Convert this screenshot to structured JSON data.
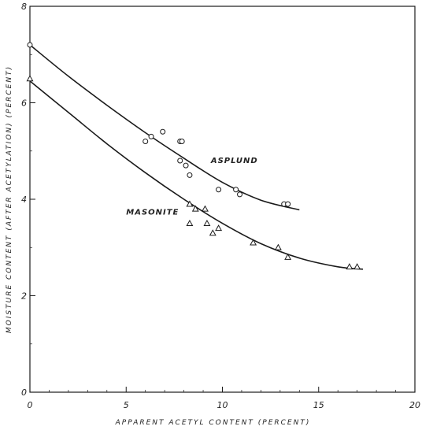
{
  "chart_data": {
    "type": "scatter",
    "xlabel": "APPARENT ACETYL CONTENT (PERCENT)",
    "ylabel": "MOISTURE CONTENT (AFTER ACETYLATION) (PERCENT)",
    "xlim": [
      0,
      20
    ],
    "ylim": [
      0,
      8
    ],
    "x_ticks": [
      "0",
      "5",
      "10",
      "15",
      "20"
    ],
    "y_ticks": [
      "0",
      "2",
      "4",
      "6",
      "8"
    ],
    "grid": false,
    "series": [
      {
        "name": "ASPLUND",
        "marker": "circle",
        "points": [
          {
            "x": 0,
            "y": 7.2
          },
          {
            "x": 6.0,
            "y": 5.2
          },
          {
            "x": 6.3,
            "y": 5.3
          },
          {
            "x": 6.9,
            "y": 5.4
          },
          {
            "x": 7.8,
            "y": 5.2
          },
          {
            "x": 7.9,
            "y": 5.2
          },
          {
            "x": 7.8,
            "y": 4.8
          },
          {
            "x": 8.1,
            "y": 4.7
          },
          {
            "x": 8.3,
            "y": 4.5
          },
          {
            "x": 9.8,
            "y": 4.2
          },
          {
            "x": 10.7,
            "y": 4.2
          },
          {
            "x": 10.9,
            "y": 4.1
          },
          {
            "x": 13.2,
            "y": 3.9
          },
          {
            "x": 13.4,
            "y": 3.9
          }
        ],
        "curve": [
          {
            "x": 0,
            "y": 7.2
          },
          {
            "x": 2,
            "y": 6.55
          },
          {
            "x": 4,
            "y": 5.95
          },
          {
            "x": 6,
            "y": 5.38
          },
          {
            "x": 8,
            "y": 4.85
          },
          {
            "x": 10,
            "y": 4.35
          },
          {
            "x": 12,
            "y": 3.98
          },
          {
            "x": 14,
            "y": 3.78
          }
        ]
      },
      {
        "name": "MASONITE",
        "marker": "triangle",
        "points": [
          {
            "x": 0,
            "y": 6.5
          },
          {
            "x": 8.3,
            "y": 3.9
          },
          {
            "x": 8.6,
            "y": 3.8
          },
          {
            "x": 9.1,
            "y": 3.8
          },
          {
            "x": 8.3,
            "y": 3.5
          },
          {
            "x": 9.2,
            "y": 3.5
          },
          {
            "x": 9.5,
            "y": 3.3
          },
          {
            "x": 9.8,
            "y": 3.4
          },
          {
            "x": 11.6,
            "y": 3.1
          },
          {
            "x": 12.9,
            "y": 3.0
          },
          {
            "x": 13.4,
            "y": 2.8
          },
          {
            "x": 16.6,
            "y": 2.6
          },
          {
            "x": 17.0,
            "y": 2.6
          }
        ],
        "curve": [
          {
            "x": 0,
            "y": 6.45
          },
          {
            "x": 2,
            "y": 5.8
          },
          {
            "x": 4,
            "y": 5.15
          },
          {
            "x": 6,
            "y": 4.55
          },
          {
            "x": 8,
            "y": 4.0
          },
          {
            "x": 10,
            "y": 3.5
          },
          {
            "x": 12,
            "y": 3.08
          },
          {
            "x": 14,
            "y": 2.78
          },
          {
            "x": 16,
            "y": 2.6
          },
          {
            "x": 17.3,
            "y": 2.55
          }
        ]
      }
    ]
  }
}
